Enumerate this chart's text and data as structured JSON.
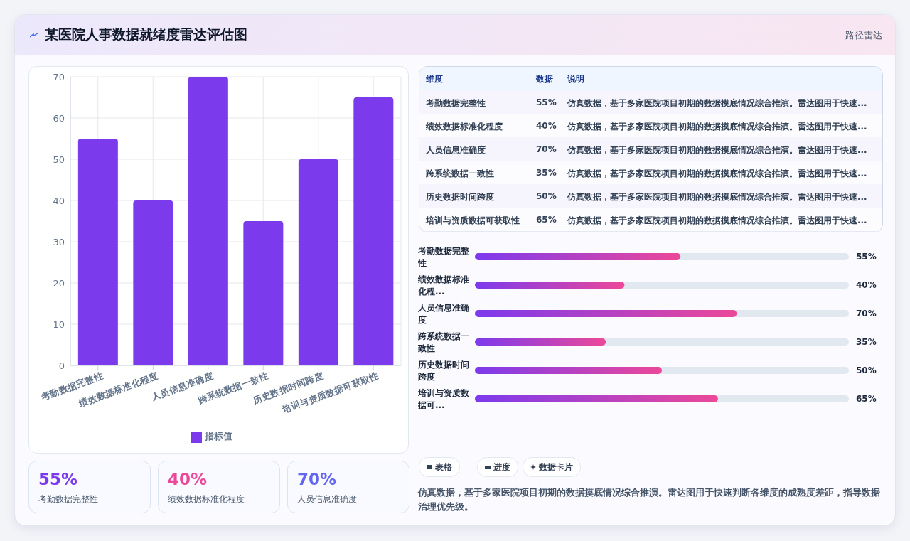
{
  "chart_data": [
    {
      "type": "bar",
      "title": "某医院人事数据就绪度雷达评估图",
      "categories": [
        "考勤数据完整性",
        "绩效数据标准化程度",
        "人员信息准确度",
        "跨系统数据一致性",
        "历史数据时间跨度",
        "培训与资质数据可获取性"
      ],
      "series": [
        {
          "name": "指标值",
          "color": "#7c3aed",
          "values": [
            55,
            40,
            70,
            35,
            50,
            65
          ]
        }
      ],
      "value_labels": [
        "55%",
        "40%",
        "70%",
        "35%",
        "50%",
        "65%"
      ],
      "ylim": [
        0,
        70
      ],
      "yticks": [
        0,
        10,
        20,
        30,
        40,
        50,
        60,
        70
      ],
      "grid": true,
      "legend": "bottom",
      "annotations": [
        "路径雷达",
        "维度",
        "数据",
        "说明",
        "仿真数据，基于多家医院项目初期的数据摸底情况综合推演。雷达图用于快速...",
        "仿真数据，基于多家医院项目初期的数据摸底情况综合推演。雷达图用于快速...",
        "仿真数据，基于多家医院项目初期的数据摸底情况综合推演。雷达图用于快速...",
        "仿真数据，基于多家医院项目初期的数据摸底情况综合推演。雷达图用于快速...",
        "仿真数据，基于多家医院项目初期的数据摸底情况综合推演。雷达图用于快速...",
        "仿真数据，基于多家医院项目初期的数据摸底情况综合推演。雷达图用于快速...",
        "表格",
        "进度",
        "数据卡片",
        "仿真数据，基于多家医院项目初期的数据摸底情况综合推演。雷达图用于快速判断各维度的成熟度差距，指导数据治理优先级。"
      ]
    },
    {
      "type": "bar",
      "orientation": "horizontal",
      "categories": [
        "考勤数据完整性",
        "绩效数据标准化程...",
        "人员信息准确度",
        "跨系统数据一致性",
        "历史数据时间跨度",
        "培训与资质数据可..."
      ],
      "values": [
        55,
        40,
        70,
        35,
        50,
        65
      ],
      "color": "#7c3aed",
      "xlim": [
        0,
        100
      ],
      "tick_labels": "y",
      "value_labels": [
        "55%",
        "40%",
        "70%",
        "35%",
        "50%",
        "65%"
      ]
    }
  ]
}
